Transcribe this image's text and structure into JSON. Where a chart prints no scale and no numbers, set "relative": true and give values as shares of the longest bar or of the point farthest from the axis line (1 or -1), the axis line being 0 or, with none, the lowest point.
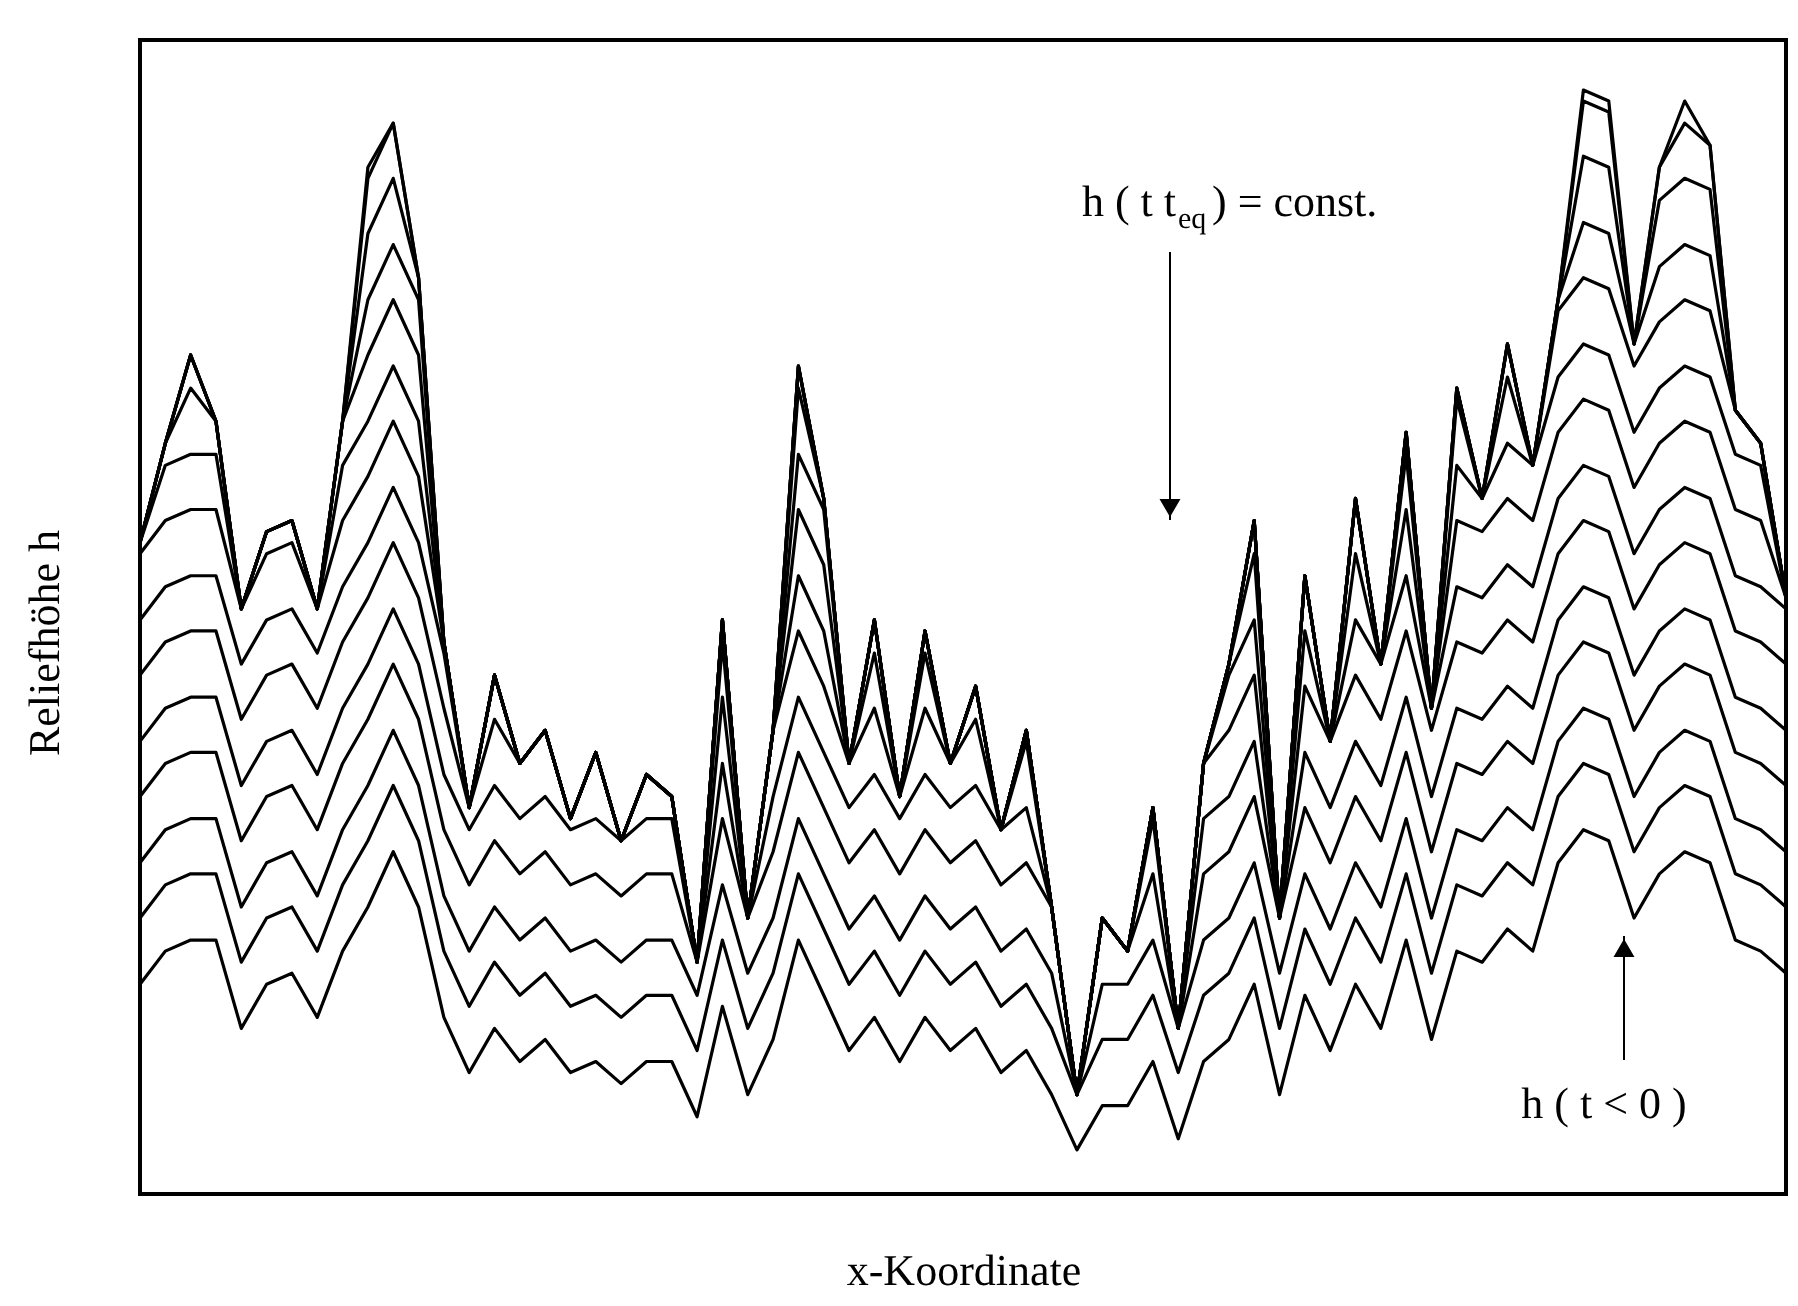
{
  "chart_data": {
    "type": "line",
    "relative": true,
    "xlabel": "x-Koordinate",
    "ylabel": "Reliefhöhe  h",
    "annotations": [
      "h ( t    t$_{eq}$) = const.",
      "h ( t < 0 )"
    ],
    "categories": [
      null,
      null,
      null,
      null,
      null,
      null,
      null,
      null,
      null,
      null,
      null,
      null,
      null,
      null,
      null,
      null,
      null,
      null,
      null,
      null,
      null,
      null,
      null,
      null,
      null,
      null,
      null,
      null,
      null,
      null,
      null,
      null,
      null,
      null,
      null,
      null,
      null,
      null,
      null,
      null,
      null,
      null,
      null,
      null,
      null,
      null,
      null,
      null,
      null,
      null,
      null,
      null,
      null,
      null,
      null,
      null,
      null,
      null,
      null,
      null,
      null,
      null,
      null,
      null,
      null,
      null
    ],
    "series": [
      {
        "color": "#000000",
        "values": [
          0.19,
          0.22,
          0.23,
          0.23,
          0.15,
          0.19,
          0.2,
          0.16,
          0.22,
          0.26,
          0.31,
          0.26,
          0.16,
          0.11,
          0.15,
          0.12,
          0.14,
          0.11,
          0.12,
          0.1,
          0.12,
          0.12,
          0.07,
          0.17,
          0.09,
          0.14,
          0.23,
          0.18,
          0.13,
          0.16,
          0.12,
          0.16,
          0.13,
          0.15,
          0.11,
          0.13,
          0.09,
          0.04,
          0.08,
          0.08,
          0.12,
          0.05,
          0.12,
          0.14,
          0.19,
          0.09,
          0.18,
          0.13,
          0.19,
          0.15,
          0.23,
          0.14,
          0.22,
          0.21,
          0.24,
          0.22,
          0.3,
          0.33,
          0.32,
          0.25,
          0.29,
          0.31,
          0.3,
          0.23,
          0.22,
          0.2
        ]
      },
      {
        "color": "#000000",
        "values": [
          0.25,
          0.28,
          0.29,
          0.29,
          0.21,
          0.25,
          0.26,
          0.22,
          0.28,
          0.32,
          0.37,
          0.32,
          0.22,
          0.17,
          0.21,
          0.18,
          0.2,
          0.17,
          0.18,
          0.16,
          0.18,
          0.18,
          0.13,
          0.23,
          0.15,
          0.2,
          0.29,
          0.24,
          0.19,
          0.22,
          0.18,
          0.22,
          0.19,
          0.21,
          0.17,
          0.19,
          0.15,
          0.09,
          0.14,
          0.14,
          0.18,
          0.11,
          0.18,
          0.2,
          0.25,
          0.15,
          0.24,
          0.19,
          0.25,
          0.21,
          0.29,
          0.2,
          0.28,
          0.27,
          0.3,
          0.28,
          0.36,
          0.39,
          0.38,
          0.31,
          0.35,
          0.37,
          0.36,
          0.29,
          0.28,
          0.26
        ]
      },
      {
        "color": "#000000",
        "values": [
          0.3,
          0.33,
          0.34,
          0.34,
          0.26,
          0.3,
          0.31,
          0.27,
          0.33,
          0.37,
          0.42,
          0.37,
          0.27,
          0.22,
          0.26,
          0.23,
          0.25,
          0.22,
          0.23,
          0.21,
          0.23,
          0.23,
          0.18,
          0.28,
          0.2,
          0.25,
          0.34,
          0.29,
          0.24,
          0.27,
          0.23,
          0.27,
          0.24,
          0.26,
          0.22,
          0.24,
          0.2,
          0.09,
          0.19,
          0.19,
          0.23,
          0.15,
          0.23,
          0.25,
          0.3,
          0.2,
          0.29,
          0.24,
          0.3,
          0.26,
          0.34,
          0.25,
          0.33,
          0.32,
          0.35,
          0.33,
          0.41,
          0.44,
          0.43,
          0.36,
          0.4,
          0.42,
          0.41,
          0.34,
          0.33,
          0.31
        ]
      },
      {
        "color": "#000000",
        "values": [
          0.36,
          0.39,
          0.4,
          0.4,
          0.32,
          0.36,
          0.37,
          0.33,
          0.39,
          0.43,
          0.48,
          0.43,
          0.33,
          0.28,
          0.32,
          0.29,
          0.31,
          0.28,
          0.29,
          0.27,
          0.29,
          0.29,
          0.21,
          0.34,
          0.25,
          0.31,
          0.4,
          0.35,
          0.3,
          0.33,
          0.29,
          0.33,
          0.3,
          0.32,
          0.28,
          0.3,
          0.26,
          0.09,
          0.25,
          0.22,
          0.29,
          0.15,
          0.29,
          0.31,
          0.36,
          0.25,
          0.35,
          0.3,
          0.36,
          0.32,
          0.4,
          0.31,
          0.39,
          0.38,
          0.41,
          0.39,
          0.47,
          0.5,
          0.49,
          0.42,
          0.46,
          0.48,
          0.47,
          0.4,
          0.39,
          0.37
        ]
      },
      {
        "color": "#000000",
        "values": [
          0.41,
          0.44,
          0.45,
          0.45,
          0.37,
          0.41,
          0.42,
          0.38,
          0.44,
          0.48,
          0.53,
          0.48,
          0.38,
          0.33,
          0.37,
          0.34,
          0.36,
          0.33,
          0.34,
          0.32,
          0.34,
          0.34,
          0.21,
          0.39,
          0.25,
          0.36,
          0.45,
          0.4,
          0.35,
          0.38,
          0.34,
          0.38,
          0.35,
          0.37,
          0.33,
          0.35,
          0.26,
          0.09,
          0.25,
          0.22,
          0.34,
          0.15,
          0.34,
          0.36,
          0.41,
          0.25,
          0.4,
          0.35,
          0.41,
          0.37,
          0.45,
          0.36,
          0.44,
          0.43,
          0.46,
          0.44,
          0.52,
          0.55,
          0.54,
          0.47,
          0.51,
          0.53,
          0.52,
          0.45,
          0.44,
          0.42
        ]
      },
      {
        "color": "#000000",
        "values": [
          0.47,
          0.5,
          0.51,
          0.51,
          0.43,
          0.47,
          0.48,
          0.44,
          0.5,
          0.54,
          0.59,
          0.54,
          0.44,
          0.35,
          0.43,
          0.39,
          0.42,
          0.34,
          0.4,
          0.32,
          0.38,
          0.36,
          0.21,
          0.45,
          0.25,
          0.42,
          0.51,
          0.46,
          0.39,
          0.44,
          0.36,
          0.44,
          0.39,
          0.43,
          0.33,
          0.41,
          0.26,
          0.09,
          0.25,
          0.22,
          0.35,
          0.15,
          0.39,
          0.42,
          0.47,
          0.25,
          0.46,
          0.41,
          0.47,
          0.43,
          0.51,
          0.42,
          0.5,
          0.49,
          0.52,
          0.5,
          0.58,
          0.61,
          0.6,
          0.53,
          0.57,
          0.59,
          0.58,
          0.51,
          0.5,
          0.48
        ]
      },
      {
        "color": "#000000",
        "values": [
          0.52,
          0.55,
          0.56,
          0.56,
          0.48,
          0.52,
          0.53,
          0.49,
          0.55,
          0.59,
          0.64,
          0.59,
          0.49,
          0.35,
          0.47,
          0.39,
          0.42,
          0.34,
          0.4,
          0.32,
          0.38,
          0.36,
          0.21,
          0.5,
          0.25,
          0.42,
          0.56,
          0.51,
          0.39,
          0.49,
          0.36,
          0.49,
          0.39,
          0.46,
          0.33,
          0.42,
          0.26,
          0.09,
          0.25,
          0.22,
          0.35,
          0.15,
          0.39,
          0.47,
          0.52,
          0.25,
          0.51,
          0.41,
          0.52,
          0.48,
          0.56,
          0.44,
          0.55,
          0.54,
          0.57,
          0.55,
          0.63,
          0.66,
          0.65,
          0.58,
          0.62,
          0.64,
          0.63,
          0.56,
          0.55,
          0.53
        ]
      },
      {
        "color": "#000000",
        "values": [
          0.58,
          0.61,
          0.62,
          0.62,
          0.53,
          0.58,
          0.59,
          0.53,
          0.61,
          0.65,
          0.7,
          0.65,
          0.5,
          0.35,
          0.47,
          0.39,
          0.42,
          0.34,
          0.4,
          0.32,
          0.38,
          0.36,
          0.21,
          0.52,
          0.25,
          0.42,
          0.62,
          0.57,
          0.39,
          0.52,
          0.36,
          0.51,
          0.39,
          0.46,
          0.33,
          0.42,
          0.26,
          0.09,
          0.25,
          0.22,
          0.35,
          0.15,
          0.39,
          0.48,
          0.58,
          0.25,
          0.56,
          0.41,
          0.58,
          0.48,
          0.62,
          0.44,
          0.61,
          0.6,
          0.63,
          0.61,
          0.69,
          0.72,
          0.71,
          0.64,
          0.68,
          0.7,
          0.69,
          0.62,
          0.61,
          0.54
        ]
      },
      {
        "color": "#000000",
        "values": [
          0.59,
          0.66,
          0.67,
          0.67,
          0.53,
          0.6,
          0.61,
          0.53,
          0.66,
          0.7,
          0.75,
          0.7,
          0.5,
          0.35,
          0.47,
          0.39,
          0.42,
          0.34,
          0.4,
          0.32,
          0.38,
          0.36,
          0.21,
          0.52,
          0.25,
          0.42,
          0.67,
          0.62,
          0.39,
          0.52,
          0.36,
          0.51,
          0.39,
          0.46,
          0.33,
          0.42,
          0.26,
          0.09,
          0.25,
          0.22,
          0.35,
          0.15,
          0.39,
          0.48,
          0.61,
          0.25,
          0.56,
          0.41,
          0.63,
          0.48,
          0.67,
          0.44,
          0.66,
          0.63,
          0.68,
          0.66,
          0.74,
          0.77,
          0.76,
          0.69,
          0.73,
          0.75,
          0.74,
          0.67,
          0.66,
          0.54
        ]
      },
      {
        "color": "#000000",
        "values": [
          0.59,
          0.68,
          0.73,
          0.7,
          0.53,
          0.6,
          0.61,
          0.53,
          0.7,
          0.76,
          0.81,
          0.76,
          0.5,
          0.35,
          0.47,
          0.39,
          0.42,
          0.34,
          0.4,
          0.32,
          0.38,
          0.36,
          0.21,
          0.52,
          0.25,
          0.42,
          0.73,
          0.63,
          0.39,
          0.52,
          0.36,
          0.51,
          0.39,
          0.46,
          0.33,
          0.42,
          0.26,
          0.09,
          0.25,
          0.22,
          0.35,
          0.15,
          0.39,
          0.48,
          0.61,
          0.25,
          0.56,
          0.41,
          0.63,
          0.48,
          0.69,
          0.44,
          0.72,
          0.63,
          0.74,
          0.66,
          0.8,
          0.83,
          0.82,
          0.75,
          0.79,
          0.81,
          0.8,
          0.71,
          0.68,
          0.54
        ]
      },
      {
        "color": "#000000",
        "values": [
          0.59,
          0.68,
          0.76,
          0.7,
          0.53,
          0.6,
          0.61,
          0.53,
          0.7,
          0.81,
          0.86,
          0.81,
          0.5,
          0.35,
          0.47,
          0.39,
          0.42,
          0.34,
          0.4,
          0.32,
          0.38,
          0.36,
          0.21,
          0.52,
          0.25,
          0.42,
          0.75,
          0.63,
          0.39,
          0.52,
          0.36,
          0.51,
          0.39,
          0.46,
          0.33,
          0.42,
          0.26,
          0.09,
          0.25,
          0.22,
          0.35,
          0.15,
          0.39,
          0.48,
          0.61,
          0.25,
          0.56,
          0.41,
          0.63,
          0.48,
          0.69,
          0.44,
          0.73,
          0.63,
          0.77,
          0.66,
          0.81,
          0.88,
          0.87,
          0.77,
          0.84,
          0.86,
          0.85,
          0.71,
          0.68,
          0.54
        ]
      },
      {
        "color": "#000000",
        "values": [
          0.59,
          0.68,
          0.76,
          0.7,
          0.53,
          0.6,
          0.61,
          0.53,
          0.7,
          0.87,
          0.92,
          0.83,
          0.5,
          0.35,
          0.47,
          0.39,
          0.42,
          0.34,
          0.4,
          0.32,
          0.38,
          0.36,
          0.21,
          0.52,
          0.25,
          0.42,
          0.75,
          0.63,
          0.39,
          0.52,
          0.36,
          0.51,
          0.39,
          0.46,
          0.33,
          0.42,
          0.26,
          0.09,
          0.25,
          0.22,
          0.35,
          0.15,
          0.39,
          0.48,
          0.61,
          0.25,
          0.56,
          0.41,
          0.63,
          0.48,
          0.69,
          0.44,
          0.73,
          0.63,
          0.77,
          0.66,
          0.81,
          0.94,
          0.93,
          0.77,
          0.9,
          0.92,
          0.91,
          0.71,
          0.68,
          0.54
        ]
      },
      {
        "color": "#000000",
        "values": [
          0.59,
          0.68,
          0.76,
          0.7,
          0.53,
          0.6,
          0.61,
          0.53,
          0.7,
          0.92,
          0.97,
          0.83,
          0.5,
          0.35,
          0.47,
          0.39,
          0.42,
          0.34,
          0.4,
          0.32,
          0.38,
          0.36,
          0.21,
          0.52,
          0.25,
          0.42,
          0.75,
          0.63,
          0.39,
          0.52,
          0.36,
          0.51,
          0.39,
          0.46,
          0.33,
          0.42,
          0.26,
          0.09,
          0.25,
          0.22,
          0.35,
          0.15,
          0.39,
          0.48,
          0.61,
          0.25,
          0.56,
          0.41,
          0.63,
          0.48,
          0.69,
          0.44,
          0.73,
          0.63,
          0.77,
          0.66,
          0.81,
          0.99,
          0.98,
          0.77,
          0.93,
          0.97,
          0.95,
          0.71,
          0.68,
          0.54
        ]
      },
      {
        "color": "#000000",
        "values": [
          0.59,
          0.68,
          0.76,
          0.7,
          0.53,
          0.6,
          0.61,
          0.53,
          0.7,
          0.93,
          0.97,
          0.83,
          0.5,
          0.35,
          0.47,
          0.39,
          0.42,
          0.34,
          0.4,
          0.32,
          0.38,
          0.36,
          0.21,
          0.52,
          0.25,
          0.42,
          0.75,
          0.63,
          0.39,
          0.52,
          0.36,
          0.51,
          0.39,
          0.46,
          0.33,
          0.42,
          0.26,
          0.09,
          0.25,
          0.22,
          0.35,
          0.15,
          0.39,
          0.48,
          0.61,
          0.25,
          0.56,
          0.41,
          0.63,
          0.48,
          0.69,
          0.44,
          0.73,
          0.63,
          0.77,
          0.66,
          0.81,
          1.0,
          0.99,
          0.77,
          0.93,
          0.99,
          0.95,
          0.71,
          0.68,
          0.54
        ]
      }
    ]
  }
}
